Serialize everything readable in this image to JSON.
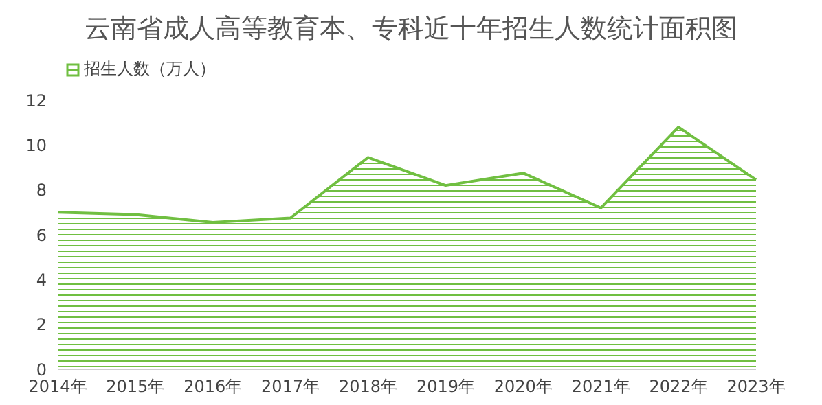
{
  "chart_data": {
    "type": "area",
    "title": "云南省成人高等教育本、专科近十年招生人数统计面积图",
    "categories": [
      "2014年",
      "2015年",
      "2016年",
      "2017年",
      "2018年",
      "2019年",
      "2020年",
      "2021年",
      "2022年",
      "2023年"
    ],
    "series": [
      {
        "name": "招生人数（万人）",
        "color": "#70bf41",
        "values": [
          7.0,
          6.9,
          6.55,
          6.75,
          9.45,
          8.2,
          8.75,
          7.2,
          10.8,
          8.45
        ]
      }
    ],
    "ylim": [
      0,
      12
    ],
    "yticks": [
      0,
      2,
      4,
      6,
      8,
      10,
      12
    ],
    "grid": false,
    "legend": "top left"
  }
}
